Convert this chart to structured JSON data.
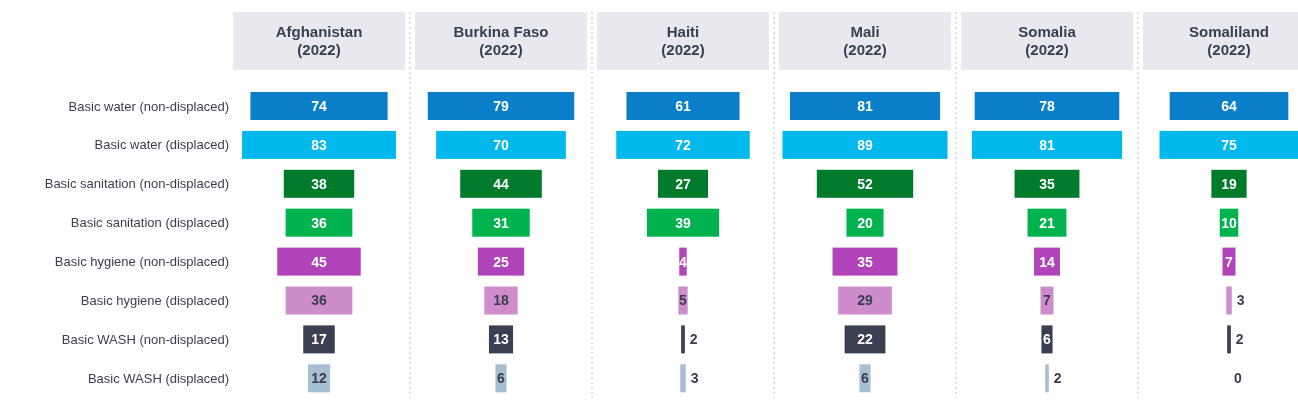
{
  "chart_data": [
    {
      "type": "other",
      "title": "Afghanistan\n(2022)",
      "categories": [
        "Basic water (non-displaced)",
        "Basic water (displaced)",
        "Basic sanitation (non-displaced)",
        "Basic sanitation (displaced)",
        "Basic hygiene (non-displaced)",
        "Basic hygiene (displaced)",
        "Basic WASH (non-displaced)",
        "Basic WASH (displaced)"
      ],
      "values": [
        74,
        83,
        38,
        36,
        45,
        36,
        17,
        12
      ],
      "colors": [
        "#0a7ec8",
        "#00b8ec",
        "#007a2b",
        "#00b34e",
        "#b044b8",
        "#cf8ccd",
        "#3a4052",
        "#a8bfd2"
      ],
      "data_labels": true
    },
    {
      "type": "other",
      "title": "Burkina Faso\n(2022)",
      "categories": [
        null,
        null,
        null,
        null,
        null,
        null,
        null,
        null
      ],
      "values": [
        79,
        70,
        44,
        31,
        25,
        18,
        13,
        6
      ],
      "colors": [
        "#0a7ec8",
        "#00b8ec",
        "#007a2b",
        "#00b34e",
        "#b044b8",
        "#cf8ccd",
        "#3a4052",
        "#a8bfd2"
      ],
      "data_labels": true
    },
    {
      "type": "other",
      "title": "Haiti\n(2022)",
      "categories": [
        null,
        null,
        null,
        null,
        null,
        null,
        null,
        null
      ],
      "values": [
        61,
        72,
        27,
        39,
        4,
        5,
        2,
        3
      ],
      "colors": [
        "#0a7ec8",
        "#00b8ec",
        "#007a2b",
        "#00b34e",
        "#b044b8",
        "#cf8ccd",
        "#3a4052",
        "#a8bfd2"
      ],
      "data_labels": true
    },
    {
      "type": "other",
      "title": "Mali\n(2022)",
      "categories": [
        null,
        null,
        null,
        null,
        null,
        null,
        null,
        null
      ],
      "values": [
        81,
        89,
        52,
        20,
        35,
        29,
        22,
        6
      ],
      "colors": [
        "#0a7ec8",
        "#00b8ec",
        "#007a2b",
        "#00b34e",
        "#b044b8",
        "#cf8ccd",
        "#3a4052",
        "#a8bfd2"
      ],
      "data_labels": true
    },
    {
      "type": "other",
      "title": "Somalia\n(2022)",
      "categories": [
        null,
        null,
        null,
        null,
        null,
        null,
        null,
        null
      ],
      "values": [
        78,
        81,
        35,
        21,
        14,
        7,
        6,
        2
      ],
      "colors": [
        "#0a7ec8",
        "#00b8ec",
        "#007a2b",
        "#00b34e",
        "#b044b8",
        "#cf8ccd",
        "#3a4052",
        "#a8bfd2"
      ],
      "data_labels": true
    },
    {
      "type": "other",
      "title": "Somaliland\n(2022)",
      "categories": [
        null,
        null,
        null,
        null,
        null,
        null,
        null,
        null
      ],
      "values": [
        64,
        75,
        19,
        10,
        7,
        3,
        2,
        0
      ],
      "colors": [
        "#0a7ec8",
        "#00b8ec",
        "#007a2b",
        "#00b34e",
        "#b044b8",
        "#cf8ccd",
        "#3a4052",
        "#a8bfd2"
      ],
      "data_labels": true
    }
  ]
}
